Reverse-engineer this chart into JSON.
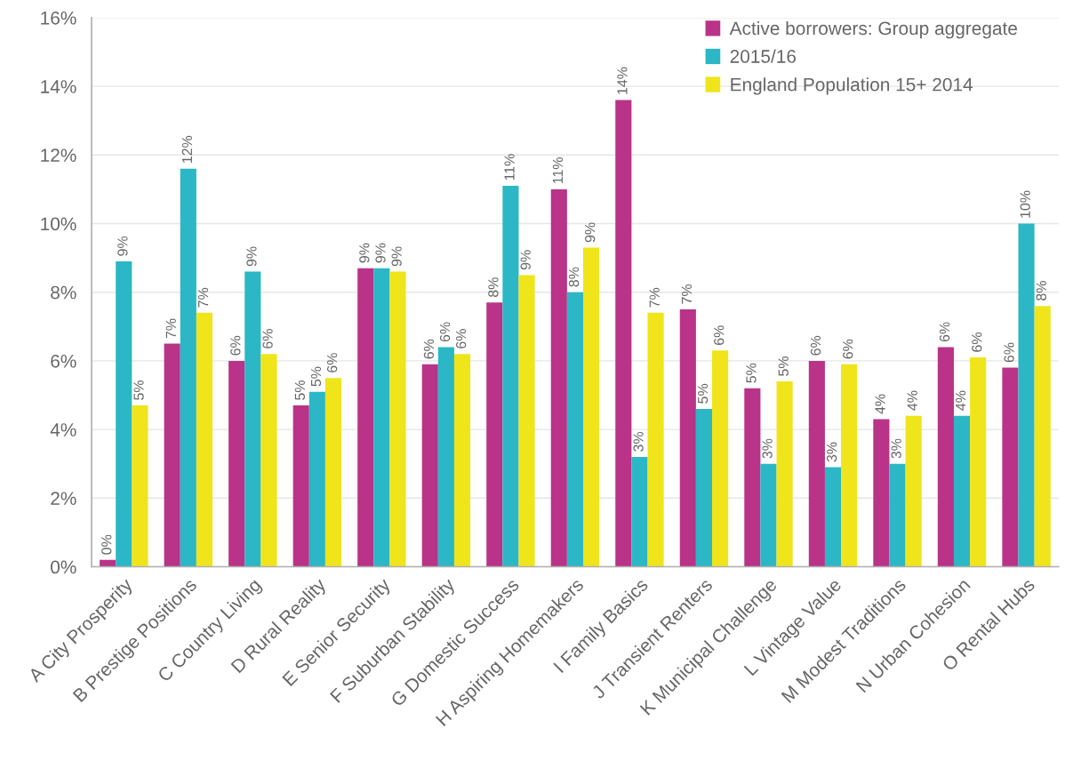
{
  "chart_data": {
    "type": "bar",
    "categories": [
      "A City Prosperity",
      "B Prestige Positions",
      "C Country Living",
      "D Rural Reality",
      "E Senior Security",
      "F Suburban Stability",
      "G Domestic Success",
      "H Aspiring Homemakers",
      "I Family Basics",
      "J Transient Renters",
      "K Municipal Challenge",
      "L Vintage Value",
      "M Modest Traditions",
      "N Urban Cohesion",
      "O Rental Hubs"
    ],
    "series": [
      {
        "name": "Active borrowers: Group aggregate",
        "color": "#b93388",
        "values": [
          0.2,
          6.5,
          6.0,
          4.7,
          8.7,
          5.9,
          7.7,
          11.0,
          13.6,
          7.5,
          5.2,
          6.0,
          4.3,
          6.4,
          5.8
        ],
        "value_labels": [
          "0%",
          "7%",
          "6%",
          "5%",
          "9%",
          "6%",
          "8%",
          "11%",
          "14%",
          "7%",
          "5%",
          "6%",
          "4%",
          "6%",
          "6%"
        ]
      },
      {
        "name": "2015/16",
        "color": "#2bb7c5",
        "values": [
          8.9,
          11.6,
          8.6,
          5.1,
          8.7,
          6.4,
          11.1,
          8.0,
          3.2,
          4.6,
          3.0,
          2.9,
          3.0,
          4.4,
          10.0
        ],
        "value_labels": [
          "9%",
          "12%",
          "9%",
          "5%",
          "9%",
          "6%",
          "11%",
          "8%",
          "3%",
          "5%",
          "3%",
          "3%",
          "3%",
          "4%",
          "10%"
        ]
      },
      {
        "name": "England Population 15+ 2014",
        "color": "#f0e41b",
        "values": [
          4.7,
          7.4,
          6.2,
          5.5,
          8.6,
          6.2,
          8.5,
          9.3,
          7.4,
          6.3,
          5.4,
          5.9,
          4.4,
          6.1,
          7.6
        ],
        "value_labels": [
          "5%",
          "7%",
          "6%",
          "6%",
          "9%",
          "6%",
          "9%",
          "9%",
          "7%",
          "6%",
          "5%",
          "6%",
          "4%",
          "6%",
          "8%"
        ]
      }
    ],
    "ylim": [
      0,
      16
    ],
    "yticks": [
      {
        "value": 0,
        "label": "0%"
      },
      {
        "value": 2,
        "label": "2%"
      },
      {
        "value": 4,
        "label": "4%"
      },
      {
        "value": 6,
        "label": "6%"
      },
      {
        "value": 8,
        "label": "8%"
      },
      {
        "value": 10,
        "label": "10%"
      },
      {
        "value": 12,
        "label": "12%"
      },
      {
        "value": 14,
        "label": "14%"
      },
      {
        "value": 16,
        "label": "16%"
      }
    ],
    "grid": "y",
    "legend": "top right"
  }
}
